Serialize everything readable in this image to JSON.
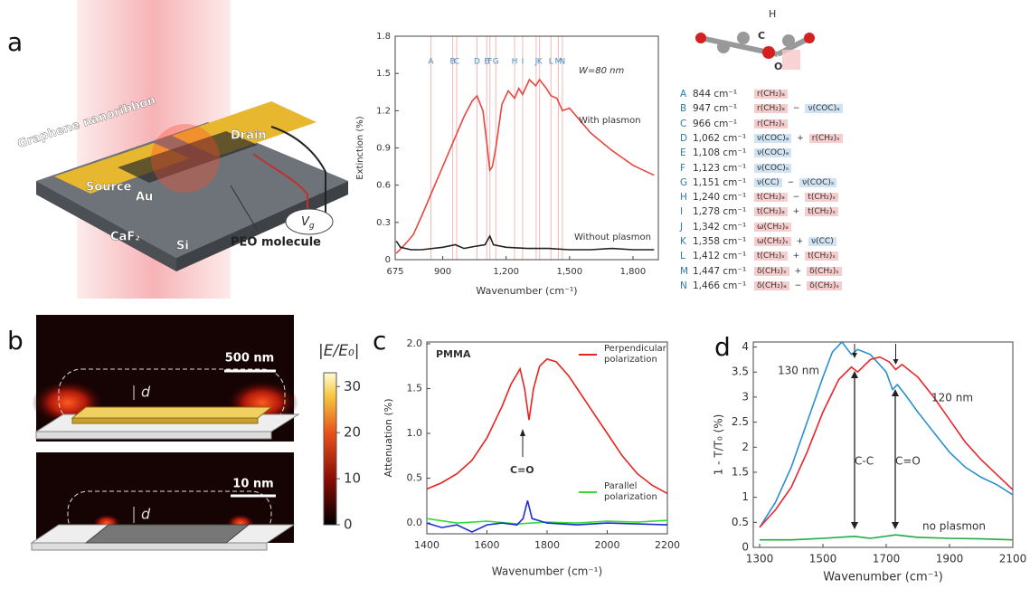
{
  "panels": [
    "a",
    "b",
    "c",
    "d"
  ],
  "schematic": {
    "graphene": "Graphene nanoribbon",
    "drain": "Drain",
    "source": "Source",
    "au": "Au",
    "caf2": "CaF₂",
    "si": "Si",
    "vg": "V",
    "vg_sub": "g",
    "peo": "PEO molecule"
  },
  "molecule": {
    "h": "H",
    "c": "C",
    "o": "O"
  },
  "assignments": [
    {
      "letter": "A",
      "wavenumber": "844 cm⁻¹",
      "terms": [
        "r(CH₂)ₐ"
      ]
    },
    {
      "letter": "B",
      "wavenumber": "947 cm⁻¹",
      "terms": [
        "r(CH₂)ₐ",
        "−",
        "ν(COC)ₐ"
      ]
    },
    {
      "letter": "C",
      "wavenumber": "966 cm⁻¹",
      "terms": [
        "r(CH₂)ₛ"
      ]
    },
    {
      "letter": "D",
      "wavenumber": "1,062 cm⁻¹",
      "terms": [
        "ν(COC)ₐ",
        "+",
        "r(CH₂)ₛ"
      ]
    },
    {
      "letter": "E",
      "wavenumber": "1,108 cm⁻¹",
      "terms": [
        "ν(COC)ₐ"
      ]
    },
    {
      "letter": "F",
      "wavenumber": "1,123 cm⁻¹",
      "terms": [
        "ν(COC)ₛ"
      ]
    },
    {
      "letter": "G",
      "wavenumber": "1,151 cm⁻¹",
      "terms": [
        "ν(CC)",
        "−",
        "ν(COC)ₛ"
      ]
    },
    {
      "letter": "H",
      "wavenumber": "1,240 cm⁻¹",
      "terms": [
        "t(CH₂)ₐ",
        "−",
        "t(CH₂)ₛ"
      ]
    },
    {
      "letter": "I",
      "wavenumber": "1,278 cm⁻¹",
      "terms": [
        "t(CH₂)ₐ",
        "+",
        "t(CH₂)ₛ"
      ]
    },
    {
      "letter": "J",
      "wavenumber": "1,342 cm⁻¹",
      "terms": [
        "ω(CH₂)ₐ"
      ]
    },
    {
      "letter": "K",
      "wavenumber": "1,358 cm⁻¹",
      "terms": [
        "ω(CH₂)ₛ",
        "+",
        "ν(CC)"
      ]
    },
    {
      "letter": "L",
      "wavenumber": "1,412 cm⁻¹",
      "terms": [
        "t(CH₂)ₛ",
        "+",
        "t(CH₂)ₛ"
      ]
    },
    {
      "letter": "M",
      "wavenumber": "1,447 cm⁻¹",
      "terms": [
        "δ(CH₂)ₛ",
        "+",
        "δ(CH₂)ₛ"
      ]
    },
    {
      "letter": "N",
      "wavenumber": "1,466 cm⁻¹",
      "terms": [
        "δ(CH₂)ₐ",
        "−",
        "δ(CH₂)ₛ"
      ]
    }
  ],
  "near_field": {
    "scale_top": "500 nm",
    "scale_bottom": "10 nm",
    "gap_top": "d",
    "gap_bottom": "d",
    "colorbar": {
      "label": "|E/E₀|",
      "lim": [
        0,
        33
      ],
      "ticks": [
        0,
        10,
        20,
        30
      ]
    }
  },
  "chart_data": [
    {
      "type": "line",
      "x_label": "Wavenumber (cm⁻¹)",
      "y_label": "Extinction (%)",
      "xlim": [
        675,
        1920
      ],
      "ylim": [
        0,
        1.8
      ],
      "xticks": [
        675,
        900,
        {
          "value": 1200,
          "label": "1,200"
        },
        {
          "value": 1500,
          "label": "1,500"
        },
        {
          "value": 1800,
          "label": "1,800"
        }
      ],
      "yticks": [
        0,
        0.3,
        0.6,
        0.9,
        1.2,
        1.5,
        1.8
      ],
      "annotations": [
        "W=80 nm",
        "With plasmon",
        "Without plasmon"
      ],
      "markers": {
        "labels": [
          "A",
          "B",
          "C",
          "D",
          "E",
          "F",
          "G",
          "H",
          "I",
          "J",
          "K",
          "L",
          "M",
          "N"
        ],
        "x": [
          844,
          947,
          966,
          1062,
          1108,
          1123,
          1151,
          1240,
          1278,
          1342,
          1358,
          1412,
          1447,
          1466
        ],
        "color": "#f2b8b8"
      },
      "series": [
        {
          "color": "#e8473f",
          "x": [
            680,
            720,
            760,
            800,
            850,
            900,
            950,
            1000,
            1040,
            1062,
            1090,
            1108,
            1123,
            1135,
            1151,
            1180,
            1210,
            1240,
            1260,
            1278,
            1310,
            1340,
            1358,
            1390,
            1412,
            1440,
            1466,
            1500,
            1550,
            1600,
            1650,
            1700,
            1750,
            1800,
            1850,
            1900
          ],
          "values": [
            0.05,
            0.12,
            0.2,
            0.35,
            0.55,
            0.75,
            0.95,
            1.15,
            1.28,
            1.32,
            1.2,
            0.95,
            0.72,
            0.75,
            0.9,
            1.25,
            1.36,
            1.3,
            1.38,
            1.33,
            1.45,
            1.4,
            1.45,
            1.38,
            1.32,
            1.3,
            1.2,
            1.22,
            1.12,
            1.02,
            0.95,
            0.88,
            0.82,
            0.76,
            0.72,
            0.68
          ]
        },
        {
          "color": "#222222",
          "x": [
            680,
            700,
            750,
            800,
            900,
            960,
            1000,
            1062,
            1100,
            1123,
            1140,
            1200,
            1300,
            1400,
            1500,
            1600,
            1700,
            1800,
            1900
          ],
          "values": [
            0.15,
            0.1,
            0.08,
            0.08,
            0.1,
            0.12,
            0.09,
            0.11,
            0.12,
            0.19,
            0.12,
            0.1,
            0.09,
            0.09,
            0.08,
            0.08,
            0.09,
            0.08,
            0.08
          ]
        }
      ]
    },
    {
      "type": "line",
      "x_label": "Wavenumber (cm⁻¹)",
      "y_label": "Attenuation (%)",
      "xlim": [
        1400,
        2200
      ],
      "ylim": [
        -0.12,
        2.02
      ],
      "xticks": [
        1400,
        1600,
        1800,
        2000,
        2200
      ],
      "yticks": [
        {
          "value": 0,
          "label": "0.0"
        },
        0.5,
        {
          "value": 1,
          "label": "1.0"
        },
        1.5,
        {
          "value": 2,
          "label": "2.0"
        }
      ],
      "annotations": [
        "PMMA",
        "C=O"
      ],
      "series": [
        {
          "name": "Perpendicular polarization",
          "color": "#e8231f",
          "x": [
            1400,
            1450,
            1500,
            1550,
            1600,
            1650,
            1680,
            1710,
            1725,
            1740,
            1755,
            1775,
            1800,
            1830,
            1870,
            1900,
            1950,
            2000,
            2050,
            2100,
            2150,
            2200
          ],
          "values": [
            0.38,
            0.45,
            0.55,
            0.7,
            0.95,
            1.3,
            1.55,
            1.72,
            1.5,
            1.15,
            1.5,
            1.75,
            1.83,
            1.8,
            1.65,
            1.5,
            1.25,
            1.0,
            0.75,
            0.55,
            0.42,
            0.33
          ]
        },
        {
          "name": "Parallel polarization",
          "color": "#33dd33",
          "x": [
            1400,
            1500,
            1600,
            1700,
            1800,
            1900,
            2000,
            2100,
            2200
          ],
          "values": [
            0.05,
            0.0,
            0.02,
            -0.01,
            0.01,
            0.0,
            0.02,
            0.01,
            0.03
          ]
        },
        {
          "color": "#1f2fd0",
          "x": [
            1400,
            1450,
            1500,
            1550,
            1600,
            1650,
            1700,
            1720,
            1735,
            1750,
            1800,
            1900,
            2000,
            2100,
            2200
          ],
          "values": [
            0.0,
            -0.05,
            -0.02,
            -0.1,
            -0.02,
            0.0,
            -0.02,
            0.05,
            0.25,
            0.05,
            0.0,
            -0.02,
            0.0,
            -0.01,
            -0.02
          ]
        }
      ]
    },
    {
      "type": "line",
      "x_label": "Wavenumber (cm⁻¹)",
      "y_label": "1 - T/T₀ (%)",
      "xlim": [
        1280,
        2100
      ],
      "ylim": [
        0,
        4.1
      ],
      "xticks": [
        1300,
        1500,
        1700,
        1900,
        2100
      ],
      "yticks": [
        0,
        0.5,
        1,
        1.5,
        2,
        2.5,
        3,
        3.5,
        4
      ],
      "annotations": [
        "C-C",
        "C=O"
      ],
      "series": [
        {
          "name": "130 nm",
          "color": "#2c8fd0",
          "x": [
            1300,
            1350,
            1400,
            1450,
            1500,
            1530,
            1560,
            1590,
            1610,
            1650,
            1700,
            1720,
            1735,
            1760,
            1800,
            1850,
            1900,
            1950,
            2000,
            2050,
            2100
          ],
          "values": [
            0.4,
            0.9,
            1.6,
            2.5,
            3.4,
            3.9,
            4.1,
            3.85,
            3.95,
            3.85,
            3.5,
            3.15,
            3.25,
            3.05,
            2.7,
            2.3,
            1.9,
            1.6,
            1.4,
            1.25,
            1.05
          ]
        },
        {
          "name": "120 nm",
          "color": "#e8262b",
          "x": [
            1300,
            1350,
            1400,
            1450,
            1500,
            1550,
            1590,
            1610,
            1650,
            1680,
            1710,
            1730,
            1750,
            1800,
            1850,
            1900,
            1950,
            2000,
            2050,
            2100
          ],
          "values": [
            0.4,
            0.75,
            1.2,
            1.9,
            2.7,
            3.35,
            3.6,
            3.5,
            3.75,
            3.8,
            3.7,
            3.55,
            3.65,
            3.4,
            3.0,
            2.55,
            2.1,
            1.75,
            1.45,
            1.15
          ]
        },
        {
          "name": "no plasmon",
          "color": "#22aa44",
          "x": [
            1300,
            1400,
            1500,
            1600,
            1650,
            1730,
            1800,
            1900,
            2000,
            2100
          ],
          "values": [
            0.15,
            0.15,
            0.18,
            0.22,
            0.18,
            0.25,
            0.2,
            0.18,
            0.17,
            0.15
          ]
        }
      ]
    }
  ]
}
